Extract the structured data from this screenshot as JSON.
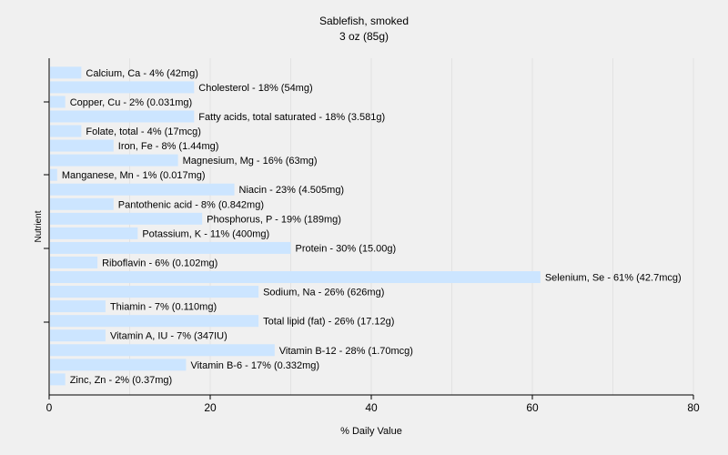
{
  "chart_data": {
    "type": "bar",
    "orientation": "horizontal",
    "title": "Sablefish, smoked",
    "subtitle": "3 oz (85g)",
    "xlabel": "% Daily Value",
    "ylabel": "Nutrient",
    "xlim": [
      0,
      80
    ],
    "xticks": [
      0,
      20,
      40,
      60,
      80
    ],
    "grid": true,
    "bar_color": "#cce5ff",
    "categories": [
      "Calcium, Ca",
      "Cholesterol",
      "Copper, Cu",
      "Fatty acids, total saturated",
      "Folate, total",
      "Iron, Fe",
      "Magnesium, Mg",
      "Manganese, Mn",
      "Niacin",
      "Pantothenic acid",
      "Phosphorus, P",
      "Potassium, K",
      "Protein",
      "Riboflavin",
      "Selenium, Se",
      "Sodium, Na",
      "Thiamin",
      "Total lipid (fat)",
      "Vitamin A, IU",
      "Vitamin B-12",
      "Vitamin B-6",
      "Zinc, Zn"
    ],
    "values": [
      4,
      18,
      2,
      18,
      4,
      8,
      16,
      1,
      23,
      8,
      19,
      11,
      30,
      6,
      61,
      26,
      7,
      26,
      7,
      28,
      17,
      2
    ],
    "labels": [
      "Calcium, Ca - 4% (42mg)",
      "Cholesterol - 18% (54mg)",
      "Copper, Cu - 2% (0.031mg)",
      "Fatty acids, total saturated - 18% (3.581g)",
      "Folate, total - 4% (17mcg)",
      "Iron, Fe - 8% (1.44mg)",
      "Magnesium, Mg - 16% (63mg)",
      "Manganese, Mn - 1% (0.017mg)",
      "Niacin - 23% (4.505mg)",
      "Pantothenic acid - 8% (0.842mg)",
      "Phosphorus, P - 19% (189mg)",
      "Potassium, K - 11% (400mg)",
      "Protein - 30% (15.00g)",
      "Riboflavin - 6% (0.102mg)",
      "Selenium, Se - 61% (42.7mcg)",
      "Sodium, Na - 26% (626mg)",
      "Thiamin - 7% (0.110mg)",
      "Total lipid (fat) - 26% (17.12g)",
      "Vitamin A, IU - 7% (347IU)",
      "Vitamin B-12 - 28% (1.70mcg)",
      "Vitamin B-6 - 17% (0.332mg)",
      "Zinc, Zn - 2% (0.37mg)"
    ]
  }
}
